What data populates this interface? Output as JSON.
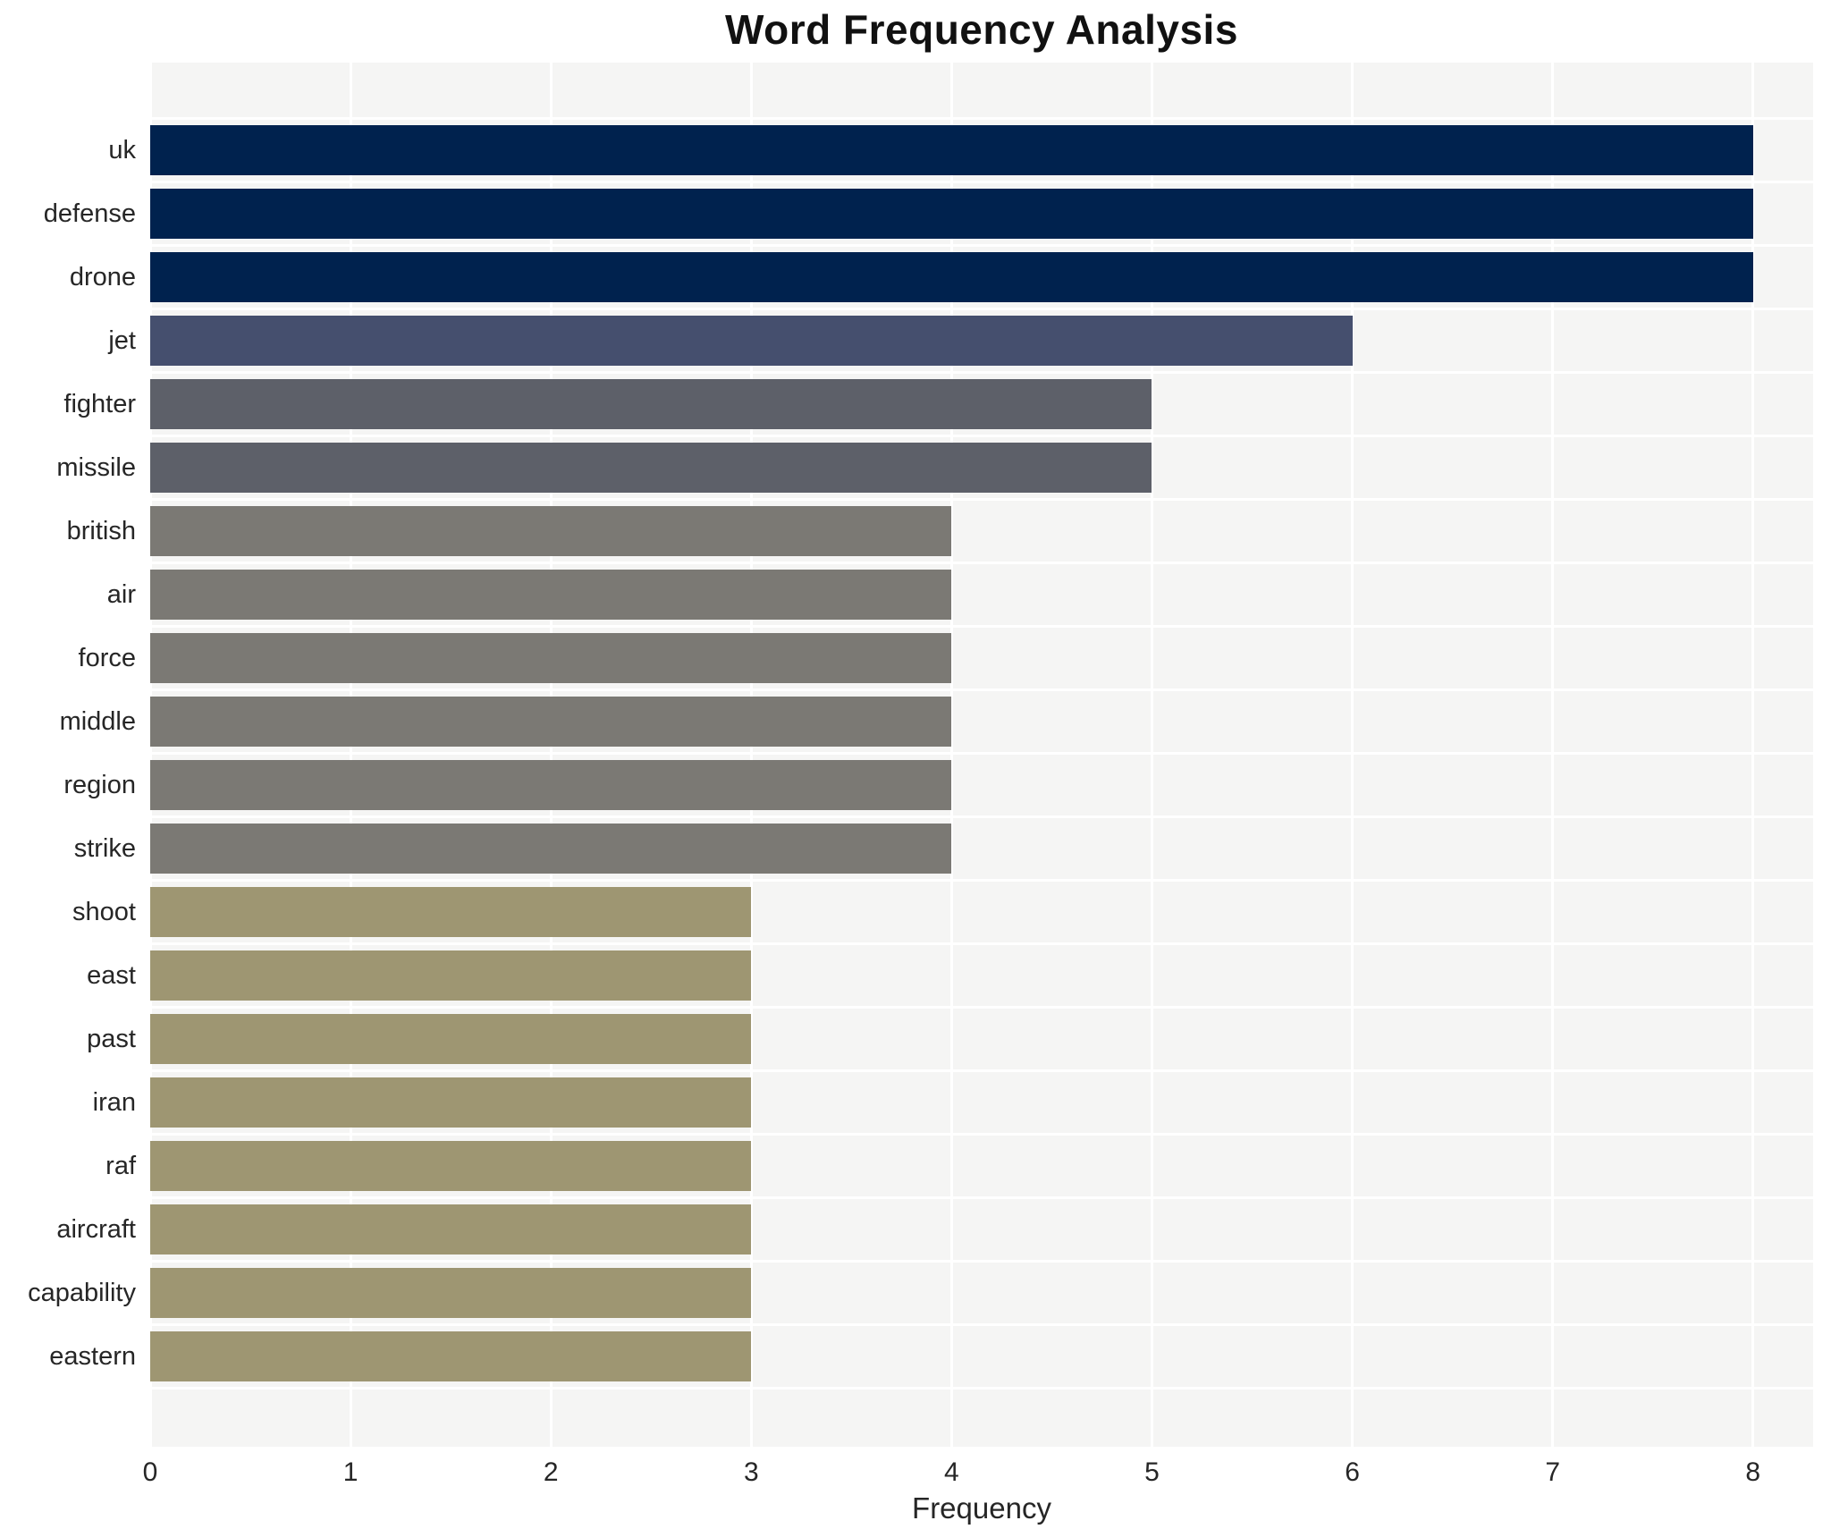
{
  "chart_data": {
    "type": "bar",
    "orientation": "horizontal",
    "title": "Word Frequency Analysis",
    "xlabel": "Frequency",
    "ylabel": "",
    "xlim": [
      0,
      8.3
    ],
    "x_ticks": [
      0,
      1,
      2,
      3,
      4,
      5,
      6,
      7,
      8
    ],
    "grid": true,
    "legend": "none",
    "categories": [
      "uk",
      "defense",
      "drone",
      "jet",
      "fighter",
      "missile",
      "british",
      "air",
      "force",
      "middle",
      "region",
      "strike",
      "shoot",
      "east",
      "past",
      "iran",
      "raf",
      "aircraft",
      "capability",
      "eastern"
    ],
    "values": [
      8,
      8,
      8,
      6,
      5,
      5,
      4,
      4,
      4,
      4,
      4,
      4,
      3,
      3,
      3,
      3,
      3,
      3,
      3,
      3
    ],
    "bar_colors": [
      "#00224e",
      "#00224e",
      "#00224e",
      "#454f6e",
      "#5d6069",
      "#5d6069",
      "#7b7974",
      "#7b7974",
      "#7b7974",
      "#7b7974",
      "#7b7974",
      "#7b7974",
      "#9e9672",
      "#9e9672",
      "#9e9672",
      "#9e9672",
      "#9e9672",
      "#9e9672",
      "#9e9672",
      "#9e9672"
    ]
  },
  "style": {
    "plot_background": "#f5f5f4",
    "grid_color": "#ffffff",
    "text_color": "#262626",
    "title_color": "#111111"
  }
}
